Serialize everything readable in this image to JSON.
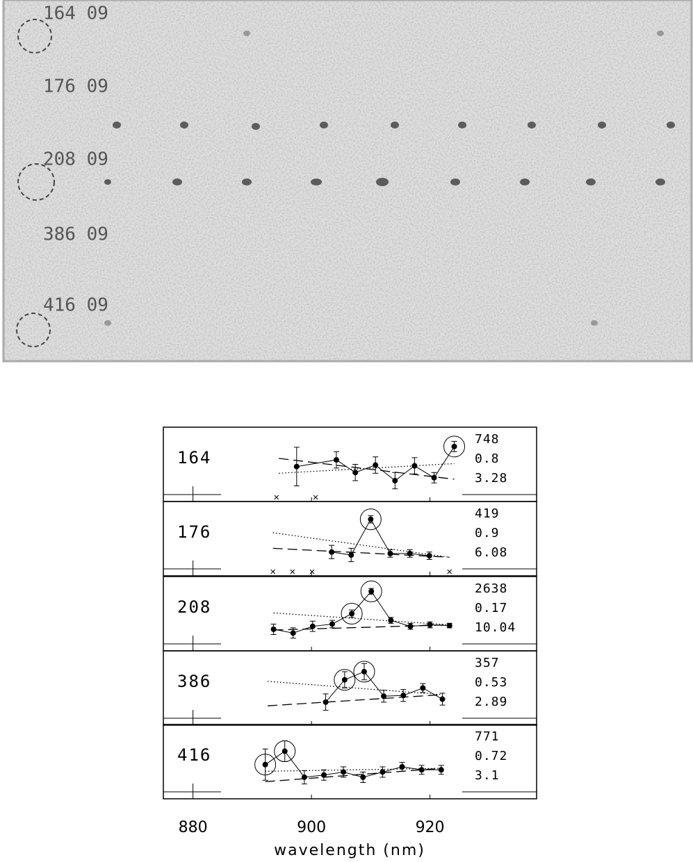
{
  "image": {
    "labels": [
      "164 09",
      "176 09",
      "208 09",
      "386 09",
      "416 09"
    ]
  },
  "chart_data": {
    "type": "errorbar",
    "xlabel": "wavelength (nm)",
    "xlim": [
      875,
      938
    ],
    "xticks": [
      880,
      900,
      920
    ],
    "ylim": [
      0,
      100
    ],
    "panels": [
      {
        "label": "164",
        "stats": [
          "748",
          "0.8",
          "3.28"
        ],
        "x": [
          897.5,
          904.2,
          907.4,
          910.8,
          914.1,
          917.4,
          920.7,
          924.1
        ],
        "values": [
          47,
          56,
          39,
          49,
          28,
          48,
          32,
          74
        ],
        "errors": [
          26,
          11,
          11,
          11,
          11,
          11,
          7,
          7
        ],
        "circled": [
          7
        ],
        "crosses": [
          894.1,
          900.7
        ],
        "fit_dashed": {
          "x": [
            894.5,
            924.1
          ],
          "values": [
            58,
            30
          ]
        },
        "fit_dotted": {
          "x": [
            894.5,
            924.1
          ],
          "values": [
            38,
            51
          ]
        }
      },
      {
        "label": "176",
        "stats": [
          "419",
          "0.9",
          "6.08"
        ],
        "x": [
          903.4,
          906.7,
          910.0,
          913.3,
          916.6,
          919.9
        ],
        "values": [
          32,
          28,
          76,
          30,
          30,
          27
        ],
        "errors": [
          9,
          9,
          5,
          5,
          5,
          5
        ],
        "circled": [
          2
        ],
        "crosses": [
          893.5,
          896.8,
          900.1,
          923.3
        ],
        "fit_dashed": {
          "x": [
            893.5,
            923.3
          ],
          "values": [
            37,
            25
          ]
        },
        "fit_dotted": {
          "x": [
            893.5,
            923.3
          ],
          "values": [
            58,
            25
          ]
        }
      },
      {
        "label": "208",
        "stats": [
          "2638",
          "0.17",
          "10.04"
        ],
        "x": [
          893.6,
          896.9,
          900.2,
          903.5,
          906.8,
          910.1,
          913.4,
          916.7,
          920.0,
          923.3
        ],
        "values": [
          29,
          24,
          33,
          36,
          50,
          80,
          41,
          33,
          35,
          34
        ],
        "errors": [
          7,
          7,
          7,
          5,
          5,
          4,
          4,
          4,
          4,
          3
        ],
        "circled": [
          4,
          5
        ],
        "crosses": [],
        "fit_dashed": {
          "x": [
            893.6,
            923.3
          ],
          "values": [
            28,
            35
          ]
        },
        "fit_dotted": {
          "x": [
            893.6,
            923.3
          ],
          "values": [
            51,
            35
          ]
        }
      },
      {
        "label": "386",
        "stats": [
          "357",
          "0.53",
          "2.89"
        ],
        "x": [
          902.4,
          905.6,
          908.9,
          912.2,
          915.5,
          918.8,
          922.1
        ],
        "values": [
          31,
          61,
          72,
          39,
          40,
          50,
          35
        ],
        "errors": [
          11,
          11,
          11,
          8,
          8,
          6,
          8
        ],
        "circled": [
          1,
          2
        ],
        "crosses": [],
        "fit_dashed": {
          "x": [
            892.6,
            922.1
          ],
          "values": [
            26,
            41
          ]
        },
        "fit_dotted": {
          "x": [
            892.6,
            922.1
          ],
          "values": [
            59,
            41
          ]
        }
      },
      {
        "label": "416",
        "stats": [
          "771",
          "0.72",
          "3.1"
        ],
        "x": [
          892.2,
          895.5,
          898.8,
          902.1,
          905.4,
          908.7,
          912.0,
          915.3,
          918.6,
          921.9
        ],
        "values": [
          46,
          64,
          29,
          32,
          36,
          29,
          36,
          43,
          39,
          39
        ],
        "errors": [
          21,
          14,
          9,
          7,
          7,
          7,
          7,
          6,
          6,
          6
        ],
        "circled": [
          0,
          1
        ],
        "crosses": [],
        "fit_dashed": {
          "x": [
            892.2,
            921.9
          ],
          "values": [
            23,
            41
          ]
        },
        "fit_dotted": {
          "x": [
            892.2,
            921.9
          ],
          "values": [
            37,
            41
          ]
        }
      }
    ]
  }
}
